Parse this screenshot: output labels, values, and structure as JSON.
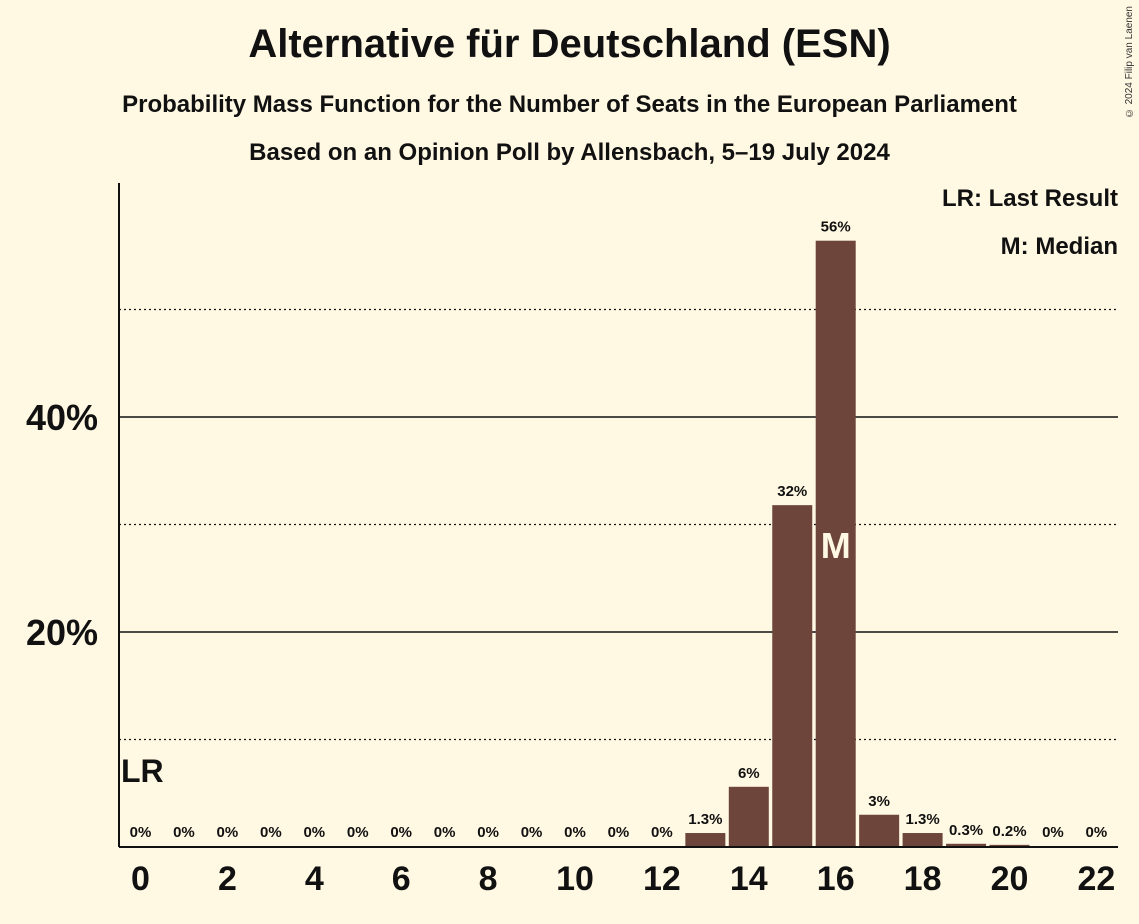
{
  "header": {
    "title": "Alternative für Deutschland (ESN)",
    "subtitle": "Probability Mass Function for the Number of Seats in the European Parliament",
    "poll_info": "Based on an Opinion Poll by Allensbach, 5–19 July 2024",
    "copyright": "© 2024 Filip van Laenen"
  },
  "legend": {
    "last_result": "LR: Last Result",
    "median": "M: Median"
  },
  "colors": {
    "background": "#fff8e3",
    "bar": "#6e453b",
    "text": "#111111"
  },
  "chart_data": {
    "type": "bar",
    "x": [
      0,
      1,
      2,
      3,
      4,
      5,
      6,
      7,
      8,
      9,
      10,
      11,
      12,
      13,
      14,
      15,
      16,
      17,
      18,
      19,
      20,
      21,
      22
    ],
    "values": [
      0,
      0,
      0,
      0,
      0,
      0,
      0,
      0,
      0,
      0,
      0,
      0,
      0,
      1.3,
      5.6,
      31.8,
      56.4,
      3.0,
      1.3,
      0.3,
      0.2,
      0,
      0
    ],
    "data_labels": [
      "0%",
      "0%",
      "0%",
      "0%",
      "0%",
      "0%",
      "0%",
      "0%",
      "0%",
      "0%",
      "0%",
      "0%",
      "0%",
      "1.3%",
      "6%",
      "32%",
      "56%",
      "3%",
      "1.3%",
      "0.3%",
      "0.2%",
      "0%",
      "0%"
    ],
    "x_tick_labels": [
      "0",
      "2",
      "4",
      "6",
      "8",
      "10",
      "12",
      "14",
      "16",
      "18",
      "20",
      "22"
    ],
    "y_tick_labels": [
      "20%",
      "40%"
    ],
    "y_major_ticks": [
      20,
      40
    ],
    "y_minor_ticks": [
      10,
      30,
      50
    ],
    "ylim": [
      0,
      61.5
    ],
    "last_result_seat": 0,
    "last_result_marker": "LR",
    "median_seat": 16,
    "median_marker": "M",
    "grid": true
  }
}
